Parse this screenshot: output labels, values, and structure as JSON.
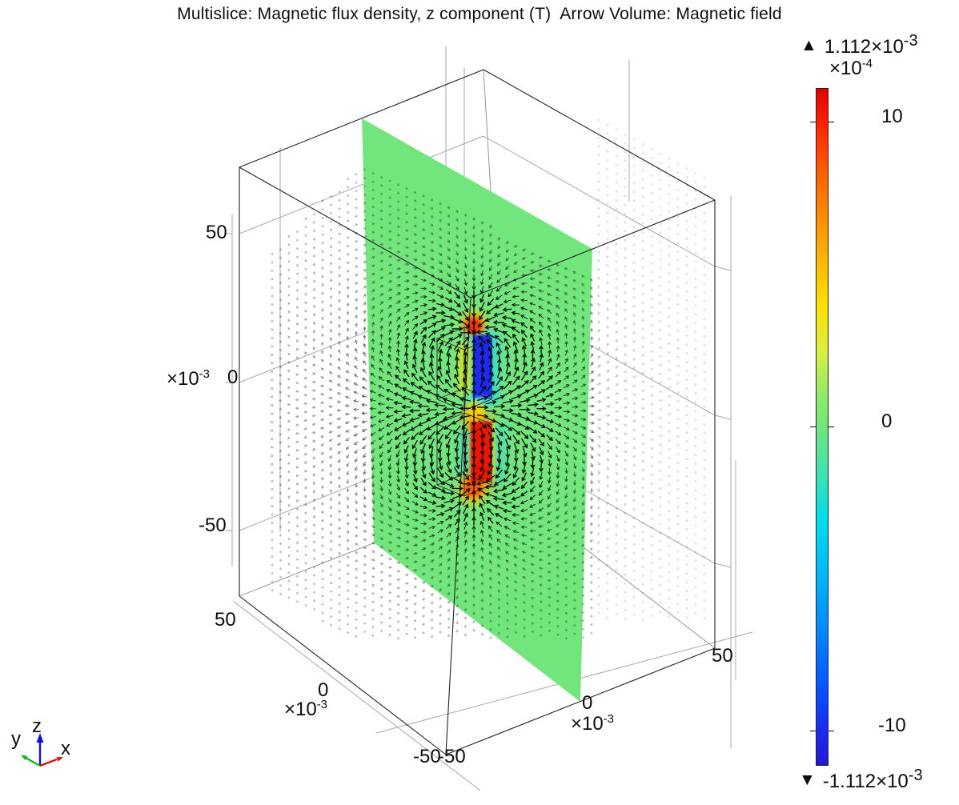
{
  "title": "Multislice: Magnetic flux density, z component (T)  Arrow Volume: Magnetic field",
  "colorbar": {
    "max": {
      "marker": "▲",
      "prefix": "1.112×10",
      "exp": "-3"
    },
    "min": {
      "marker": "▼",
      "prefix": "-1.112×10",
      "exp": "-3"
    },
    "scale": {
      "prefix": "×10",
      "exp": "-4"
    },
    "ticks": [
      "10",
      "0",
      "-10"
    ],
    "gradient": [
      "#df0000 0%",
      "#ff2000 5%",
      "#ff6a00 14%",
      "#ffa800 23%",
      "#ffe000 32%",
      "#d8f040 39%",
      "#8fe96a 45.5%",
      "#72e57c 50%",
      "#3ce3b2 57%",
      "#00ddea 63.5%",
      "#00b4ff 72.5%",
      "#0080ff 81.5%",
      "#0948ff 90.5%",
      "#1c2af0 95%",
      "#2317d6 100%"
    ]
  },
  "axes": {
    "z": {
      "ticks": [
        "50",
        "0",
        "-50"
      ],
      "scale": {
        "prefix": "×10",
        "exp": "-3"
      }
    },
    "y": {
      "ticks": [
        "50",
        "0",
        "-50"
      ],
      "scale": {
        "prefix": "×10",
        "exp": "-3"
      }
    },
    "x": {
      "ticks": [
        "-50",
        "0",
        "50"
      ],
      "scale": {
        "prefix": "×10",
        "exp": "-3"
      }
    }
  },
  "triad": {
    "x": "x",
    "y": "y",
    "z": "z"
  },
  "colors": {
    "slice_green": "#72e57c",
    "arrow_black": "#000000",
    "magnet_upper_core": "#1e2bf0",
    "magnet_lower_core": "#ea1400",
    "wireframe": "#222222",
    "ruler_grey": "#a8a8a8",
    "hidden_edge": "#8a8a8a",
    "triad_x": "#e01010",
    "triad_y": "#10b410",
    "triad_z": "#1010e0"
  },
  "chart_data": {
    "type": "heatmap",
    "title": "Multislice: Magnetic flux density, z component (T)  Arrow Volume: Magnetic field",
    "plots": [
      {
        "kind": "multislice",
        "quantity": "Magnetic flux density, z component",
        "unit": "T",
        "slices": 1,
        "colormap": "rainbow",
        "colorbar_scale": "×10^-4",
        "colorbar_tick_values": [
          10,
          0,
          -10
        ],
        "max_value": "1.112×10^-3",
        "min_value": "-1.112×10^-3"
      },
      {
        "kind": "arrow_volume",
        "quantity": "Magnetic field",
        "arrow_color": "black",
        "pattern": "field radiates from gap between two stacked magnets and loops around them; far-field arrows shrink to faint dots"
      }
    ],
    "axes": {
      "x": {
        "tick_values": [
          -50,
          0,
          50
        ],
        "scale": "×10^-3"
      },
      "y": {
        "tick_values": [
          50,
          0,
          -50
        ],
        "scale": "×10^-3"
      },
      "z": {
        "tick_values": [
          50,
          0,
          -50
        ],
        "scale": "×10^-3"
      }
    },
    "annotations": "Upper magnet cross-section negative Bz (blue), lower magnet positive Bz (red), surrounding slice ~0 (green)"
  }
}
